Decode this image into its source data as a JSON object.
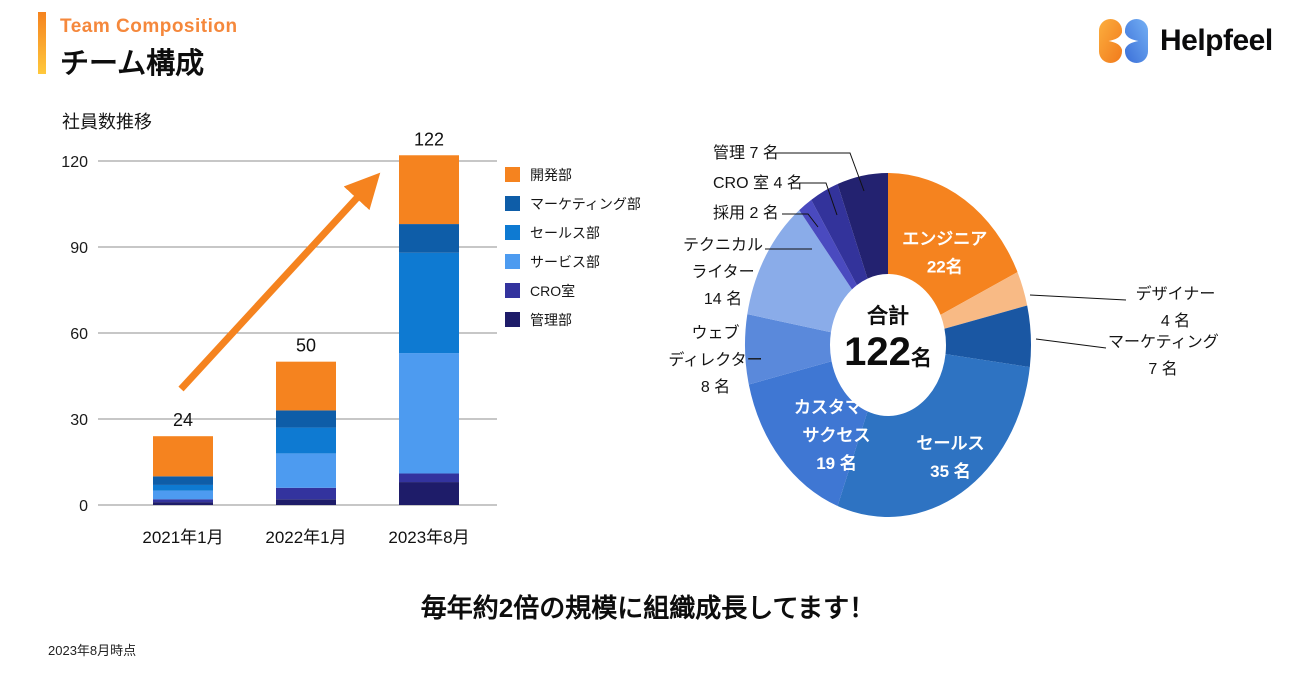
{
  "header": {
    "eyebrow": "Team Composition",
    "title": "チーム構成",
    "accent_color": "#F5831F"
  },
  "logo": {
    "text": "Helpfeel"
  },
  "caption": "毎年約2倍の規模に組織成長してます！",
  "footnote": "2023年8月時点",
  "chart_data": [
    {
      "type": "bar",
      "stacked": true,
      "title": "社員数推移",
      "categories": [
        "2021年1月",
        "2022年1月",
        "2023年8月"
      ],
      "series": [
        {
          "name": "開発部",
          "color": "#F5831F",
          "values": [
            14,
            17,
            24
          ]
        },
        {
          "name": "マーケティング部",
          "color": "#0E5DA8",
          "values": [
            3,
            6,
            10
          ]
        },
        {
          "name": "セールス部",
          "color": "#0E7AD2",
          "values": [
            2,
            9,
            35
          ]
        },
        {
          "name": "サービス部",
          "color": "#4D9BF0",
          "values": [
            3,
            12,
            42
          ]
        },
        {
          "name": "CRO室",
          "color": "#33339E",
          "values": [
            1,
            4,
            3
          ]
        },
        {
          "name": "管理部",
          "color": "#1E1C69",
          "values": [
            1,
            2,
            8
          ]
        }
      ],
      "totals": [
        24,
        50,
        122
      ],
      "yticks": [
        0,
        30,
        60,
        90,
        120
      ],
      "ylim": [
        0,
        120
      ],
      "grid": true,
      "legend_position": "right",
      "annotation": "growth-arrow",
      "arrow_color": "#F5831F"
    },
    {
      "type": "donut",
      "total": 122,
      "center": {
        "title": "合計",
        "value": "122",
        "unit": "名"
      },
      "start_angle_deg": 0,
      "clockwise": true,
      "segments": [
        {
          "name": "エンジニア",
          "value": 22,
          "color": "#F5831F",
          "placement": "inside",
          "lines": [
            "エンジニア",
            "22名"
          ]
        },
        {
          "name": "デザイナー",
          "value": 4,
          "color": "#F8BA85",
          "placement": "outside",
          "lines": [
            "デザイナー",
            "4 名"
          ]
        },
        {
          "name": "マーケティング",
          "value": 7,
          "color": "#1A57A3",
          "placement": "outside",
          "lines": [
            "マーケティング",
            "7 名"
          ]
        },
        {
          "name": "セールス",
          "value": 35,
          "color": "#2E73C2",
          "placement": "inside",
          "lines": [
            "セールス",
            "35 名"
          ]
        },
        {
          "name": "カスタマーサクセス",
          "value": 19,
          "color": "#3F77D3",
          "placement": "inside",
          "lines": [
            "カスタマー",
            "サクセス",
            "19 名"
          ]
        },
        {
          "name": "ウェブディレクター",
          "value": 8,
          "color": "#5A89DB",
          "placement": "outside",
          "lines": [
            "ウェブ",
            "ディレクター",
            "8 名"
          ]
        },
        {
          "name": "テクニカルライター",
          "value": 14,
          "color": "#8AACE9",
          "placement": "outside",
          "lines": [
            "テクニカル",
            "ライター",
            "14 名"
          ]
        },
        {
          "name": "採用",
          "value": 2,
          "color": "#4A4ABF",
          "placement": "outside",
          "lines": [
            "採用 2 名"
          ]
        },
        {
          "name": "CRO室",
          "value": 4,
          "color": "#33339B",
          "placement": "outside",
          "lines": [
            "CRO 室 4 名"
          ]
        },
        {
          "name": "管理",
          "value": 7,
          "color": "#232270",
          "placement": "outside",
          "lines": [
            "管理 7 名"
          ]
        }
      ]
    }
  ]
}
